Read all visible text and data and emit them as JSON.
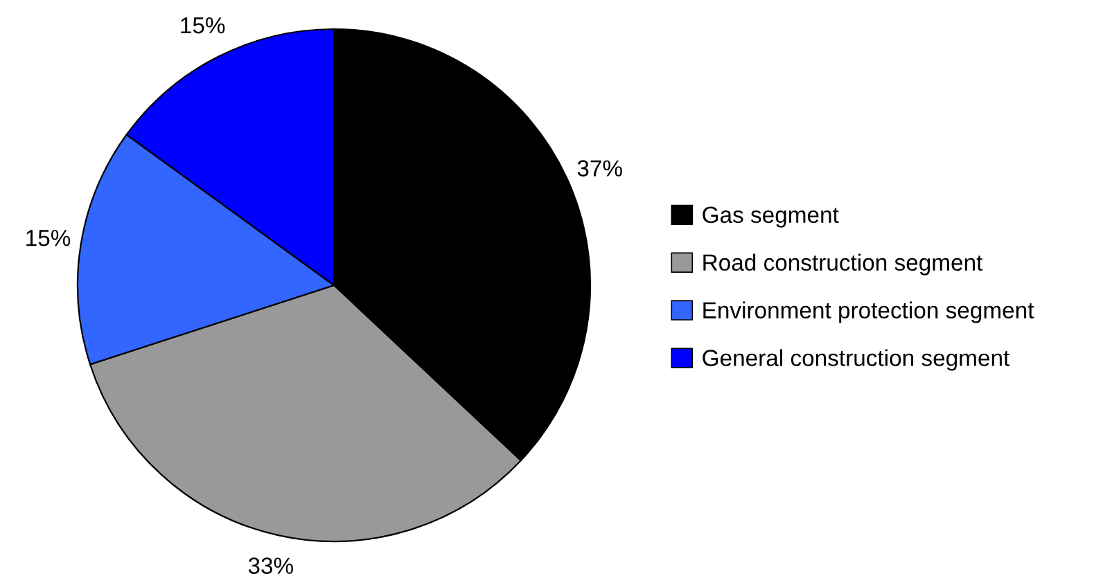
{
  "chart_data": {
    "type": "pie",
    "categories": [
      "Gas segment",
      "Road construction segment",
      "Environment protection segment",
      "General construction segment"
    ],
    "values": [
      37,
      33,
      15,
      15
    ],
    "value_labels": [
      "37%",
      "33%",
      "15%",
      "15%"
    ],
    "colors": [
      "#000000",
      "#999999",
      "#3366ff",
      "#0000ff"
    ],
    "legend": "right"
  }
}
